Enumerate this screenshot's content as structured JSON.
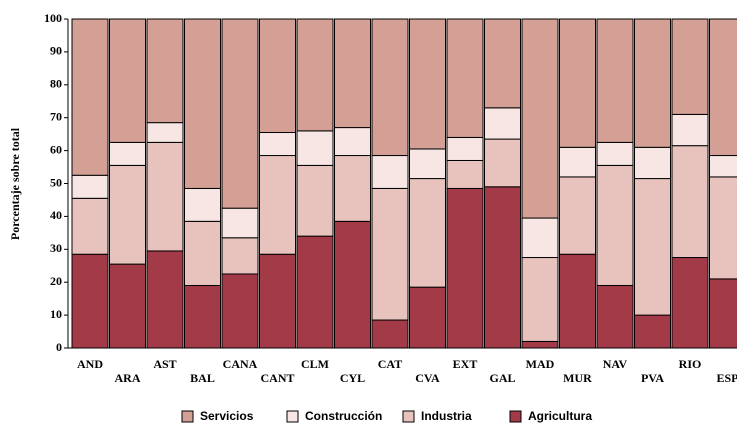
{
  "chart_data": {
    "type": "bar",
    "stacked": true,
    "y_label": "Porcentaje sobre total",
    "categories": [
      "AND",
      "ARA",
      "AST",
      "BAL",
      "CANA",
      "CANT",
      "CLM",
      "CYL",
      "CAT",
      "CVA",
      "EXT",
      "GAL",
      "MAD",
      "MUR",
      "NAV",
      "PVA",
      "RIO",
      "ESP"
    ],
    "series": [
      {
        "name": "Servicios",
        "color": "#d4a096",
        "values": [
          47.5,
          37.5,
          31.5,
          51.5,
          57.5,
          34.5,
          34,
          33,
          41.5,
          39.5,
          36,
          27,
          60.5,
          39,
          37.5,
          39,
          29,
          41.5
        ]
      },
      {
        "name": "Construcción",
        "color": "#f7e6e3",
        "values": [
          7,
          7,
          6,
          10,
          9,
          7,
          10.5,
          8.5,
          10,
          9,
          7,
          9.5,
          12,
          9,
          7,
          9.5,
          9.5,
          6.5
        ]
      },
      {
        "name": "Industria",
        "color": "#e8c3bd",
        "values": [
          17,
          30,
          33,
          19.5,
          11,
          30,
          21.5,
          20,
          40,
          33,
          8.5,
          14.5,
          25.5,
          23.5,
          36.5,
          41.5,
          34,
          31
        ]
      },
      {
        "name": "Agricultura",
        "color": "#a33a48",
        "values": [
          28.5,
          25.5,
          29.5,
          19,
          22.5,
          28.5,
          34,
          38.5,
          8.5,
          18.5,
          48.5,
          49,
          2,
          28.5,
          19,
          10,
          27.5,
          21
        ]
      }
    ],
    "ylim": [
      0,
      100
    ],
    "yticks": [
      0,
      10,
      20,
      30,
      40,
      50,
      60,
      70,
      80,
      90,
      100
    ]
  }
}
